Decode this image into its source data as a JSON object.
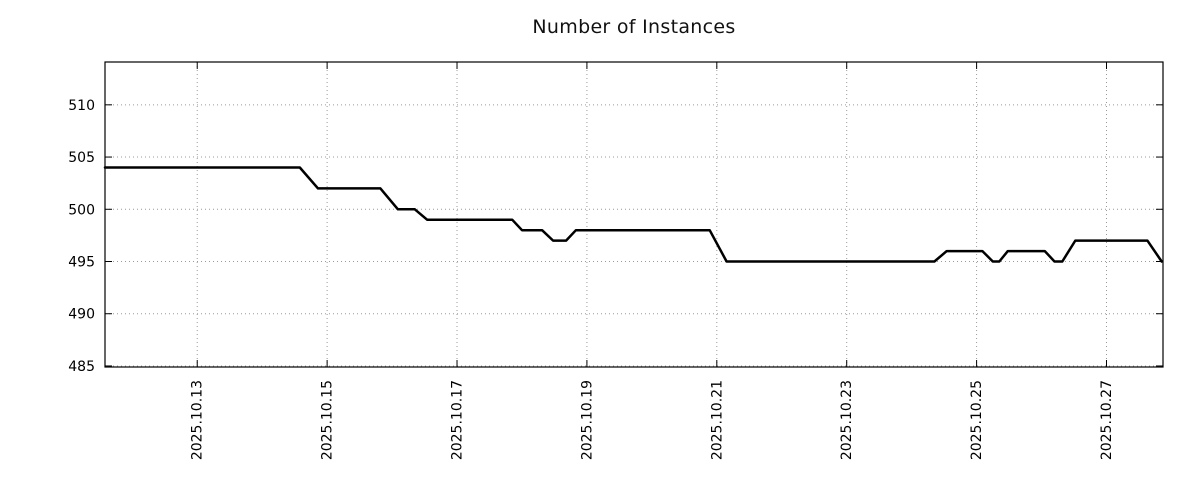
{
  "page": {
    "background": "#ffffff"
  },
  "chart_data": {
    "type": "line",
    "title": "Number of Instances",
    "x_unit": "day of month, October 2025",
    "xlim": [
      11.58,
      27.87
    ],
    "ylim": [
      484.9,
      514.1
    ],
    "grid": "dotted",
    "legend": "none",
    "y_ticks": [
      485,
      490,
      495,
      500,
      505,
      510
    ],
    "x_ticks": [
      {
        "v": 13,
        "label": "2025.10.13"
      },
      {
        "v": 15,
        "label": "2025.10.15"
      },
      {
        "v": 17,
        "label": "2025.10.17"
      },
      {
        "v": 19,
        "label": "2025.10.19"
      },
      {
        "v": 21,
        "label": "2025.10.21"
      },
      {
        "v": 23,
        "label": "2025.10.23"
      },
      {
        "v": 25,
        "label": "2025.10.25"
      },
      {
        "v": 27,
        "label": "2025.10.27"
      }
    ],
    "series": [
      {
        "name": "instances",
        "color": "#000000",
        "line_width": 2.5,
        "x": [
          11.58,
          14.58,
          14.86,
          15.82,
          16.09,
          16.35,
          16.54,
          17.85,
          18.0,
          18.31,
          18.48,
          18.68,
          18.83,
          20.89,
          21.15,
          24.35,
          24.54,
          25.09,
          25.25,
          25.35,
          25.48,
          26.05,
          26.2,
          26.32,
          26.52,
          27.63,
          27.85
        ],
        "y": [
          504,
          504,
          502,
          502,
          500,
          500,
          499,
          499,
          498,
          498,
          497,
          497,
          498,
          498,
          495,
          495,
          496,
          496,
          495,
          495,
          496,
          496,
          495,
          495,
          497,
          497,
          495
        ]
      }
    ]
  }
}
